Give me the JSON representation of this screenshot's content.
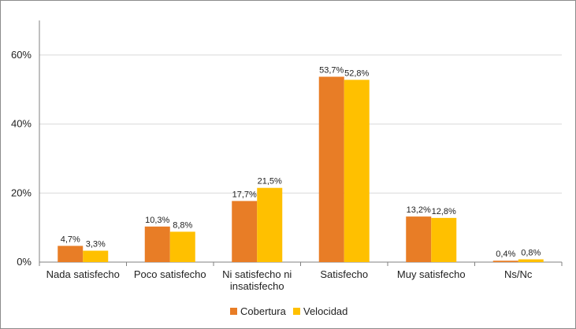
{
  "colors": {
    "cobertura": "#e87d26",
    "velocidad": "#ffc000",
    "axis": "#808080",
    "grid": "#d9d9d9"
  },
  "chart_data": {
    "type": "bar",
    "categories": [
      [
        "Nada satisfecho"
      ],
      [
        "Poco satisfecho"
      ],
      [
        "Ni satisfecho ni",
        "insatisfecho"
      ],
      [
        "Satisfecho"
      ],
      [
        "Muy satisfecho"
      ],
      [
        "Ns/Nc"
      ]
    ],
    "series": [
      {
        "name": "Cobertura",
        "values": [
          4.7,
          10.3,
          17.7,
          53.7,
          13.2,
          0.4
        ],
        "labels": [
          "4,7%",
          "10,3%",
          "17,7%",
          "53,7%",
          "13,2%",
          "0,4%"
        ]
      },
      {
        "name": "Velocidad",
        "values": [
          3.3,
          8.8,
          21.5,
          52.8,
          12.8,
          0.8
        ],
        "labels": [
          "3,3%",
          "8,8%",
          "21,5%",
          "52,8%",
          "12,8%",
          "0,8%"
        ]
      }
    ],
    "yticks": [
      0,
      20,
      40,
      60
    ],
    "ytick_labels": [
      "0%",
      "20%",
      "40%",
      "60%"
    ],
    "ylim": [
      0,
      60
    ],
    "grid": true,
    "legend_position": "bottom"
  }
}
